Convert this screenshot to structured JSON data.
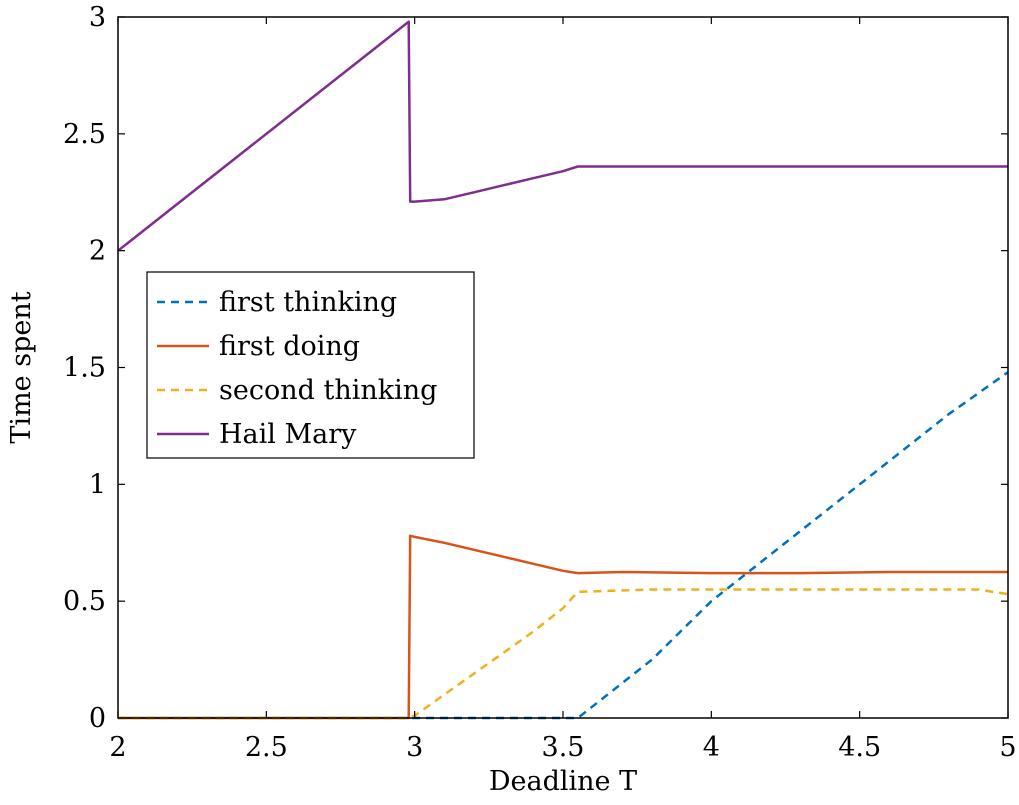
{
  "chart_data": {
    "type": "line",
    "title": "",
    "xlabel": "Deadline T",
    "ylabel": "Time spent",
    "xlim": [
      2,
      5
    ],
    "ylim": [
      0,
      3
    ],
    "xticks": [
      2,
      2.5,
      3,
      3.5,
      4,
      4.5,
      5
    ],
    "xtick_labels": [
      "2",
      "2.5",
      "3",
      "3.5",
      "4",
      "4.5",
      "5"
    ],
    "yticks": [
      0,
      0.5,
      1,
      1.5,
      2,
      2.5,
      3
    ],
    "ytick_labels": [
      "0",
      "0.5",
      "1",
      "1.5",
      "2",
      "2.5",
      "3"
    ],
    "grid": false,
    "legend_position": "middle-left",
    "series": [
      {
        "name": "first thinking",
        "color": "#0072BD",
        "dash": "dashed",
        "x": [
          2,
          2.5,
          3,
          3.3,
          3.55,
          3.6,
          3.8,
          4.0,
          4.2,
          4.4,
          4.6,
          4.8,
          5.0
        ],
        "y": [
          0,
          0,
          0,
          0,
          0,
          0.05,
          0.25,
          0.5,
          0.7,
          0.9,
          1.1,
          1.3,
          1.48
        ]
      },
      {
        "name": "first doing",
        "color": "#D95319",
        "dash": "solid",
        "x": [
          2,
          2.5,
          2.98,
          2.985,
          3.0,
          3.1,
          3.2,
          3.3,
          3.4,
          3.5,
          3.55,
          3.7,
          4.0,
          4.3,
          4.6,
          5.0
        ],
        "y": [
          0,
          0,
          0,
          0.78,
          0.775,
          0.75,
          0.72,
          0.69,
          0.66,
          0.63,
          0.62,
          0.625,
          0.62,
          0.62,
          0.625,
          0.625
        ]
      },
      {
        "name": "second thinking",
        "color": "#EDB120",
        "dash": "dashed",
        "x": [
          2,
          2.5,
          2.98,
          3.0,
          3.1,
          3.2,
          3.3,
          3.4,
          3.5,
          3.55,
          3.8,
          4.0,
          4.3,
          4.6,
          4.9,
          5.0
        ],
        "y": [
          0,
          0,
          0,
          0.01,
          0.1,
          0.19,
          0.28,
          0.37,
          0.47,
          0.54,
          0.55,
          0.55,
          0.55,
          0.55,
          0.55,
          0.53
        ]
      },
      {
        "name": "Hail Mary",
        "color": "#7E2F8E",
        "dash": "solid",
        "x": [
          2,
          2.98,
          2.985,
          3.0,
          3.1,
          3.2,
          3.3,
          3.4,
          3.5,
          3.55,
          3.8,
          4.0,
          4.3,
          4.6,
          4.9,
          5.0
        ],
        "y": [
          2,
          2.98,
          2.21,
          2.21,
          2.22,
          2.25,
          2.28,
          2.31,
          2.34,
          2.36,
          2.36,
          2.36,
          2.36,
          2.36,
          2.36,
          2.36
        ]
      }
    ]
  }
}
